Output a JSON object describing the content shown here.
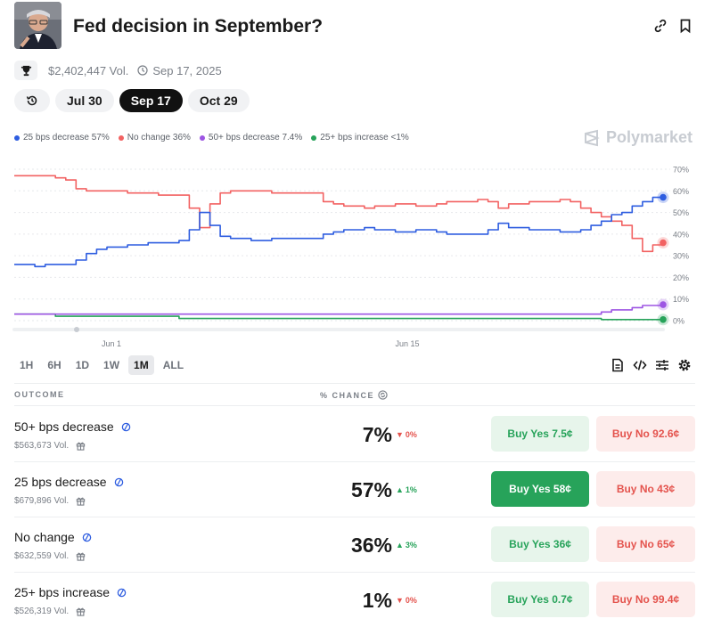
{
  "header": {
    "title": "Fed decision in September?",
    "link_icon": "link-icon",
    "bookmark_icon": "bookmark-icon"
  },
  "meta": {
    "volume": "$2,402,447 Vol.",
    "date": "Sep 17, 2025"
  },
  "date_tabs": [
    {
      "label": "Jul 30"
    },
    {
      "label": "Sep 17",
      "active": true
    },
    {
      "label": "Oct 29"
    }
  ],
  "legend": [
    {
      "label": "25 bps decrease 57%",
      "color": "#2e5de0"
    },
    {
      "label": "No change 36%",
      "color": "#f26262"
    },
    {
      "label": "50+ bps decrease 7.4%",
      "color": "#9d55e3"
    },
    {
      "label": "25+ bps increase <1%",
      "color": "#27a35a"
    }
  ],
  "brand": "Polymarket",
  "chart_data": {
    "type": "line",
    "x_tick_labels": [
      "Jun 1",
      "Jun 15"
    ],
    "y_ticks": [
      "70%",
      "60%",
      "50%",
      "40%",
      "30%",
      "20%",
      "10%",
      "0%"
    ],
    "ylim": [
      0,
      70
    ],
    "series": [
      {
        "name": "25 bps decrease",
        "color": "#2e5de0",
        "values": [
          26,
          26,
          25,
          26,
          26,
          26,
          28,
          31,
          33,
          34,
          34,
          35,
          35,
          36,
          36,
          36,
          37,
          42,
          50,
          44,
          39,
          38,
          38,
          37,
          37,
          38,
          38,
          38,
          38,
          38,
          40,
          41,
          42,
          42,
          43,
          42,
          42,
          41,
          41,
          42,
          42,
          41,
          40,
          40,
          40,
          40,
          42,
          45,
          43,
          43,
          42,
          42,
          42,
          41,
          41,
          42,
          44,
          46,
          49,
          50,
          53,
          55,
          57,
          57
        ]
      },
      {
        "name": "No change",
        "color": "#f26262",
        "values": [
          67,
          67,
          67,
          67,
          66,
          65,
          61,
          60,
          60,
          60,
          60,
          59,
          59,
          59,
          58,
          58,
          58,
          52,
          43,
          54,
          59,
          60,
          60,
          60,
          60,
          59,
          59,
          59,
          59,
          59,
          55,
          54,
          53,
          53,
          52,
          53,
          53,
          54,
          54,
          53,
          53,
          54,
          55,
          55,
          55,
          56,
          55,
          52,
          54,
          54,
          55,
          55,
          55,
          56,
          55,
          52,
          50,
          48,
          46,
          44,
          38,
          32,
          35,
          36
        ]
      },
      {
        "name": "50+ bps decrease",
        "color": "#9d55e3",
        "values": [
          3,
          3,
          3,
          3,
          3,
          3,
          3,
          3,
          3,
          3,
          3,
          3,
          3,
          3,
          3,
          3,
          3,
          3,
          3,
          3,
          3,
          3,
          3,
          3,
          3,
          3,
          3,
          3,
          3,
          3,
          3,
          3,
          3,
          3,
          3,
          3,
          3,
          3,
          3,
          3,
          3,
          3,
          3,
          3,
          3,
          3,
          3,
          3,
          3,
          3,
          3,
          3,
          3,
          3,
          3,
          3,
          3,
          4,
          5,
          5,
          6,
          7,
          7,
          7.4
        ]
      },
      {
        "name": "25+ bps increase",
        "color": "#27a35a",
        "values": [
          3,
          3,
          3,
          3,
          2,
          2,
          2,
          2,
          2,
          2,
          2,
          2,
          2,
          2,
          2,
          2,
          1,
          1,
          1,
          1,
          1,
          1,
          1,
          1,
          1,
          1,
          1,
          1,
          1,
          1,
          1,
          1,
          1,
          1,
          1,
          1,
          1,
          1,
          1,
          1,
          1,
          1,
          1,
          1,
          1,
          1,
          1,
          1,
          1,
          1,
          1,
          1,
          1,
          1,
          1,
          1,
          1,
          0.5,
          0.5,
          0.5,
          0.5,
          0.5,
          0.5,
          0.5
        ]
      }
    ]
  },
  "ranges": [
    {
      "label": "1H"
    },
    {
      "label": "6H"
    },
    {
      "label": "1D"
    },
    {
      "label": "1W"
    },
    {
      "label": "1M",
      "active": true
    },
    {
      "label": "ALL"
    }
  ],
  "table": {
    "outcome_header": "OUTCOME",
    "chance_header": "% CHANCE",
    "rows": [
      {
        "name": "50+ bps decrease",
        "volume": "$563,673 Vol.",
        "chance": "7%",
        "delta": "0%",
        "direction": "down",
        "yes": "Buy Yes 7.5¢",
        "no": "Buy No 92.6¢",
        "yes_solid": false
      },
      {
        "name": "25 bps decrease",
        "volume": "$679,896 Vol.",
        "chance": "57%",
        "delta": "1%",
        "direction": "up",
        "yes": "Buy Yes 58¢",
        "no": "Buy No 43¢",
        "yes_solid": true
      },
      {
        "name": "No change",
        "volume": "$632,559 Vol.",
        "chance": "36%",
        "delta": "3%",
        "direction": "up",
        "yes": "Buy Yes 36¢",
        "no": "Buy No 65¢",
        "yes_solid": false
      },
      {
        "name": "25+ bps increase",
        "volume": "$526,319 Vol.",
        "chance": "1%",
        "delta": "0%",
        "direction": "down",
        "yes": "Buy Yes 0.7¢",
        "no": "Buy No 99.4¢",
        "yes_solid": false
      }
    ]
  }
}
